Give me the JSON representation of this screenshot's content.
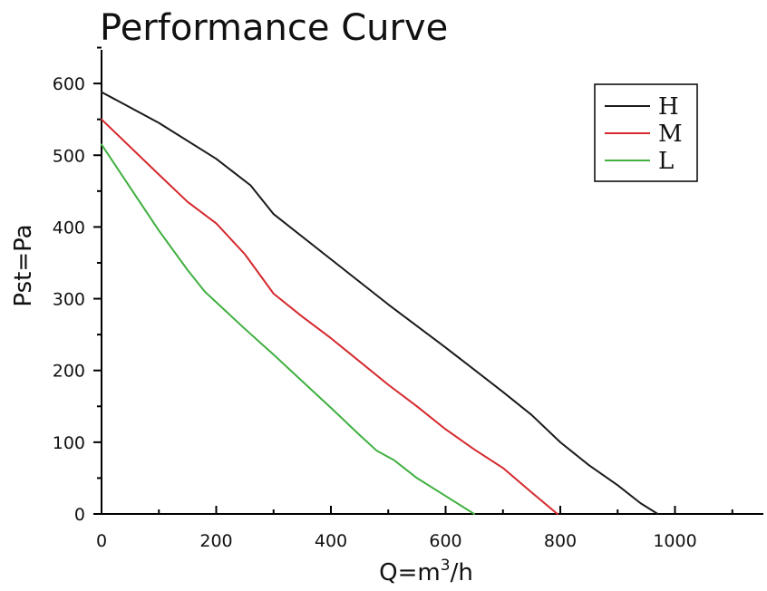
{
  "chart_data": {
    "type": "line",
    "title": "Performance Curve",
    "xlabel": "Q=m",
    "xlabel_sup": "3",
    "xlabel_tail": "/h",
    "ylabel": "Pst=Pa",
    "xlim": [
      0,
      1150
    ],
    "ylim": [
      0,
      650
    ],
    "x_ticks": [
      0,
      200,
      400,
      600,
      800,
      1000
    ],
    "y_ticks": [
      0,
      100,
      200,
      300,
      400,
      500,
      600
    ],
    "x_minor_step": 100,
    "y_minor_step": 50,
    "grid": false,
    "legend_position": "top-right",
    "series": [
      {
        "name": "H",
        "color": "#1a1a1a",
        "points": [
          [
            0,
            588
          ],
          [
            100,
            545
          ],
          [
            200,
            495
          ],
          [
            260,
            458
          ],
          [
            300,
            418
          ],
          [
            400,
            355
          ],
          [
            500,
            292
          ],
          [
            600,
            232
          ],
          [
            700,
            170
          ],
          [
            750,
            138
          ],
          [
            800,
            100
          ],
          [
            850,
            68
          ],
          [
            900,
            40
          ],
          [
            940,
            15
          ],
          [
            970,
            0
          ]
        ]
      },
      {
        "name": "M",
        "color": "#d4282d",
        "points": [
          [
            0,
            550
          ],
          [
            100,
            473
          ],
          [
            150,
            435
          ],
          [
            200,
            405
          ],
          [
            250,
            362
          ],
          [
            300,
            307
          ],
          [
            350,
            275
          ],
          [
            400,
            245
          ],
          [
            500,
            180
          ],
          [
            550,
            150
          ],
          [
            600,
            118
          ],
          [
            650,
            90
          ],
          [
            700,
            64
          ],
          [
            750,
            30
          ],
          [
            795,
            0
          ]
        ]
      },
      {
        "name": "L",
        "color": "#40b040",
        "points": [
          [
            0,
            515
          ],
          [
            50,
            455
          ],
          [
            100,
            395
          ],
          [
            150,
            340
          ],
          [
            180,
            310
          ],
          [
            250,
            258
          ],
          [
            300,
            222
          ],
          [
            350,
            185
          ],
          [
            400,
            148
          ],
          [
            450,
            110
          ],
          [
            480,
            88
          ],
          [
            510,
            75
          ],
          [
            550,
            50
          ],
          [
            600,
            25
          ],
          [
            650,
            0
          ]
        ]
      }
    ]
  }
}
